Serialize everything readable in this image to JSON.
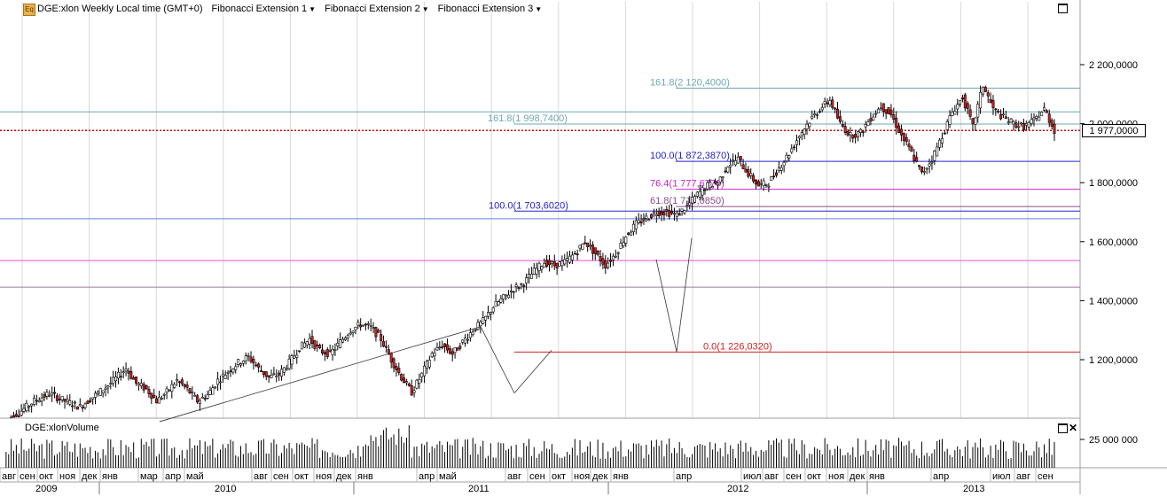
{
  "toolbar": {
    "icon": "indicator-icon",
    "title": "DGE:xlon Weekly Local time (GMT+0)",
    "menus": [
      "Fibonacci Extension 1",
      "Fibonacci Extension 2",
      "Fibonacci Extension 3"
    ]
  },
  "volume_panel": {
    "title": "DGE:xlonVolume"
  },
  "price_tag": {
    "value": "1 977,0000"
  },
  "colors": {
    "last_price": "#cc0000",
    "candle_up": "#ffffff",
    "candle_down": "#cc2222"
  },
  "chart_data": [
    {
      "type": "candlestick",
      "title": "DGE:xlon Weekly Local time (GMT+0)",
      "y_axis": {
        "side": "right",
        "ticks": [
          "2 200,0000",
          "2 000,0000",
          "1 800,0000",
          "1 600,0000",
          "1 400,0000",
          "1 200,0000"
        ],
        "tick_values": [
          2200,
          2000,
          1800,
          1600,
          1400,
          1200
        ],
        "ylim": [
          990,
          2420
        ]
      },
      "last_price": 1977.0,
      "fibonacci_levels": [
        {
          "label": "161.8(2 120,4000)",
          "value": 2120.4,
          "color": "#6fa7b3",
          "group": "Fibonacci Extension 3"
        },
        {
          "label": "161.8(1 998,7400)",
          "value": 1998.74,
          "color": "#6fa7b3",
          "group": "Fibonacci Extension 2"
        },
        {
          "label": "100.0(1 872,3870)",
          "value": 1872.387,
          "color": "#2222cc",
          "group": "Fibonacci Extension 3"
        },
        {
          "label": "76.4(1 777,6770)",
          "value": 1777.677,
          "color": "#cc22cc",
          "group": "Fibonacci Extension 3"
        },
        {
          "label": "61.8(1 719,0850)",
          "value": 1719.085,
          "color": "#8a4a8a",
          "group": "Fibonacci Extension 3"
        },
        {
          "label": "100.0(1 703,6020)",
          "value": 1703.602,
          "color": "#2222cc",
          "group": "Fibonacci Extension 2"
        },
        {
          "label": "0.0(1 226,0320)",
          "value": 1226.032,
          "color": "#cc2222",
          "group": "Fibonacci Extension 3"
        }
      ],
      "other_levels": [
        {
          "value": 2040,
          "color": "#6fa7b3"
        },
        {
          "value": 1678,
          "color": "#6a7ae0"
        },
        {
          "value": 1536,
          "color": "#dd55dd"
        },
        {
          "value": 1446,
          "color": "#9a7a9a"
        }
      ],
      "weekly_close_path": [
        [
          0,
          995
        ],
        [
          6,
          1020
        ],
        [
          12,
          1060
        ],
        [
          18,
          1085
        ],
        [
          24,
          1060
        ],
        [
          30,
          1040
        ],
        [
          36,
          1080
        ],
        [
          42,
          1120
        ],
        [
          48,
          1170
        ],
        [
          52,
          1120
        ],
        [
          56,
          1100
        ],
        [
          60,
          1060
        ],
        [
          64,
          1090
        ],
        [
          68,
          1130
        ],
        [
          72,
          1100
        ],
        [
          76,
          1060
        ],
        [
          80,
          1080
        ],
        [
          84,
          1130
        ],
        [
          88,
          1160
        ],
        [
          92,
          1190
        ],
        [
          96,
          1210
        ],
        [
          100,
          1170
        ],
        [
          104,
          1140
        ],
        [
          108,
          1150
        ],
        [
          112,
          1190
        ],
        [
          116,
          1240
        ],
        [
          120,
          1270
        ],
        [
          124,
          1230
        ],
        [
          128,
          1220
        ],
        [
          132,
          1260
        ],
        [
          136,
          1300
        ],
        [
          140,
          1320
        ],
        [
          144,
          1310
        ],
        [
          148,
          1270
        ],
        [
          152,
          1200
        ],
        [
          156,
          1140
        ],
        [
          160,
          1090
        ],
        [
          164,
          1150
        ],
        [
          168,
          1220
        ],
        [
          172,
          1250
        ],
        [
          176,
          1220
        ],
        [
          180,
          1260
        ],
        [
          184,
          1300
        ],
        [
          188,
          1330
        ],
        [
          192,
          1380
        ],
        [
          196,
          1410
        ],
        [
          200,
          1440
        ],
        [
          204,
          1460
        ],
        [
          208,
          1500
        ],
        [
          212,
          1530
        ],
        [
          216,
          1520
        ],
        [
          220,
          1530
        ],
        [
          224,
          1560
        ],
        [
          228,
          1600
        ],
        [
          232,
          1560
        ],
        [
          236,
          1520
        ],
        [
          240,
          1560
        ],
        [
          244,
          1620
        ],
        [
          248,
          1660
        ],
        [
          252,
          1680
        ],
        [
          256,
          1700
        ],
        [
          260,
          1700
        ],
        [
          264,
          1690
        ],
        [
          268,
          1720
        ],
        [
          272,
          1760
        ],
        [
          276,
          1790
        ],
        [
          280,
          1800
        ],
        [
          284,
          1860
        ],
        [
          288,
          1880
        ],
        [
          292,
          1830
        ],
        [
          296,
          1790
        ],
        [
          300,
          1800
        ],
        [
          304,
          1850
        ],
        [
          308,
          1900
        ],
        [
          312,
          1960
        ],
        [
          316,
          2010
        ],
        [
          320,
          2050
        ],
        [
          324,
          2080
        ],
        [
          328,
          2000
        ],
        [
          332,
          1960
        ],
        [
          336,
          1970
        ],
        [
          340,
          2020
        ],
        [
          344,
          2060
        ],
        [
          348,
          2030
        ],
        [
          352,
          1960
        ],
        [
          356,
          1900
        ],
        [
          360,
          1830
        ],
        [
          364,
          1880
        ],
        [
          368,
          1960
        ],
        [
          372,
          2040
        ],
        [
          376,
          2090
        ],
        [
          380,
          1990
        ],
        [
          384,
          2130
        ],
        [
          388,
          2050
        ],
        [
          392,
          2020
        ],
        [
          396,
          2000
        ],
        [
          400,
          1990
        ],
        [
          404,
          2010
        ],
        [
          408,
          2050
        ],
        [
          412,
          1977
        ]
      ],
      "x_axis": {
        "months": [
          "авг",
          "сен",
          "окт",
          "ноя",
          "дек",
          "янв",
          "мар",
          "апр",
          "май",
          "авг",
          "сен",
          "окт",
          "ноя",
          "дек",
          "янв",
          "апр",
          "май",
          "авг",
          "сен",
          "окт",
          "ноя",
          "дек",
          "янв",
          "апр",
          "июл",
          "авг",
          "сен",
          "окт",
          "ноя",
          "дек",
          "янв",
          "апр",
          "июл",
          "авг",
          "сен"
        ],
        "years": [
          "2009",
          "2010",
          "2011",
          "2012",
          "2013"
        ]
      }
    },
    {
      "type": "bar",
      "title": "DGE:xlonVolume",
      "y_axis": {
        "ticks": [
          "25 000 000"
        ],
        "tick_values": [
          25000000
        ]
      }
    }
  ]
}
